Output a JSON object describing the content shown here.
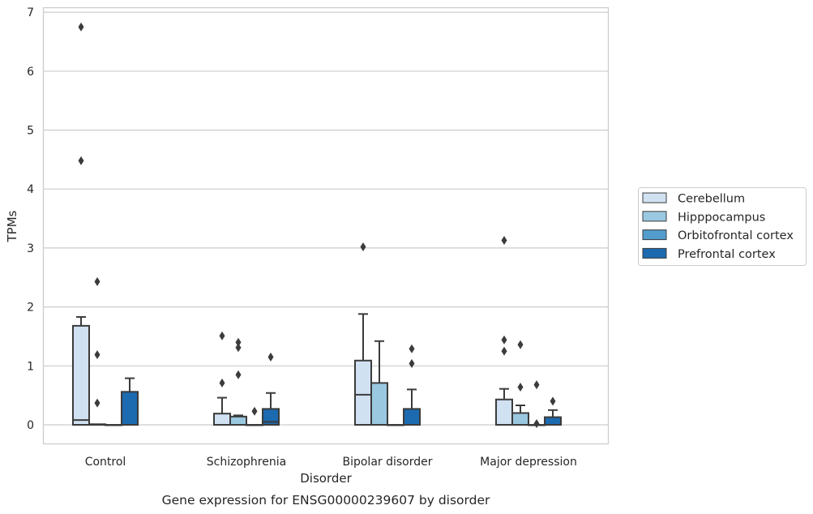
{
  "chart_data": {
    "type": "box",
    "title": "",
    "caption": "Gene expression for ENSG00000239607 by disorder",
    "xlabel": "Disorder",
    "ylabel": "TPMs",
    "ylim": [
      -0.33,
      7.1
    ],
    "yticks": [
      "0",
      "1",
      "2",
      "3",
      "4",
      "5",
      "6",
      "7"
    ],
    "grid": "horizontal",
    "legend_position": "right",
    "categories": [
      "Control",
      "Schizophrenia",
      "Bipolar disorder",
      "Major depression"
    ],
    "series": [
      {
        "name": "Cerebellum",
        "color": "#d0e1f2",
        "boxes": [
          {
            "q1": 0,
            "median": 0.08,
            "q3": 1.68,
            "whislo": 0,
            "whishi": 1.83,
            "fliers": [
              6.75,
              4.48
            ]
          },
          {
            "q1": 0,
            "median": 0,
            "q3": 0.19,
            "whislo": 0,
            "whishi": 0.46,
            "fliers": [
              1.51,
              0.71
            ]
          },
          {
            "q1": 0,
            "median": 0.51,
            "q3": 1.09,
            "whislo": 0,
            "whishi": 1.88,
            "fliers": [
              3.02
            ]
          },
          {
            "q1": 0,
            "median": 0,
            "q3": 0.43,
            "whislo": 0,
            "whishi": 0.61,
            "fliers": [
              3.13,
              1.44,
              1.25
            ]
          }
        ]
      },
      {
        "name": "Hipppocampus",
        "color": "#9ac8e0",
        "boxes": [
          {
            "q1": 0,
            "median": 0,
            "q3": 0.01,
            "whislo": 0,
            "whishi": 0.01,
            "fliers": [
              2.43,
              1.19,
              0.37
            ]
          },
          {
            "q1": 0,
            "median": 0,
            "q3": 0.14,
            "whislo": 0,
            "whishi": 0.16,
            "fliers": [
              1.4,
              1.31,
              0.85
            ]
          },
          {
            "q1": 0,
            "median": 0,
            "q3": 0.71,
            "whislo": 0,
            "whishi": 1.42,
            "fliers": []
          },
          {
            "q1": 0,
            "median": 0,
            "q3": 0.2,
            "whislo": 0,
            "whishi": 0.33,
            "fliers": [
              1.36,
              0.64
            ]
          }
        ]
      },
      {
        "name": "Orbitofrontal cortex",
        "color": "#529dcc",
        "boxes": [
          {
            "q1": 0,
            "median": 0,
            "q3": 0,
            "whislo": 0,
            "whishi": 0,
            "fliers": []
          },
          {
            "q1": 0,
            "median": 0,
            "q3": 0,
            "whislo": 0,
            "whishi": 0,
            "fliers": [
              0.23
            ]
          },
          {
            "q1": 0,
            "median": 0,
            "q3": 0,
            "whislo": 0,
            "whishi": 0,
            "fliers": []
          },
          {
            "q1": 0,
            "median": 0,
            "q3": 0,
            "whislo": 0,
            "whishi": 0,
            "fliers": [
              0.68,
              0.02
            ]
          }
        ]
      },
      {
        "name": "Prefrontal cortex",
        "color": "#1c6aaf",
        "boxes": [
          {
            "q1": 0,
            "median": 0,
            "q3": 0.56,
            "whislo": 0,
            "whishi": 0.79,
            "fliers": []
          },
          {
            "q1": 0,
            "median": 0.05,
            "q3": 0.27,
            "whislo": 0,
            "whishi": 0.54,
            "fliers": [
              1.15
            ]
          },
          {
            "q1": 0,
            "median": 0,
            "q3": 0.27,
            "whislo": 0,
            "whishi": 0.6,
            "fliers": [
              1.29,
              1.04
            ]
          },
          {
            "q1": 0,
            "median": 0,
            "q3": 0.13,
            "whislo": 0,
            "whishi": 0.25,
            "fliers": [
              0.4
            ]
          }
        ]
      }
    ]
  }
}
